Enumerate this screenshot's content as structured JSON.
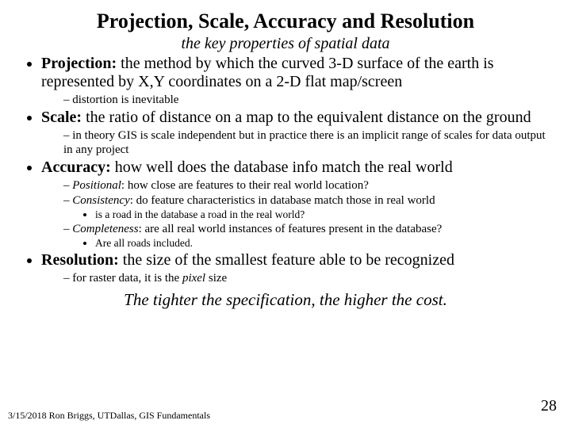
{
  "title": "Projection, Scale, Accuracy and Resolution",
  "subtitle": "the key properties of spatial data",
  "terms": {
    "projection": "Projection:",
    "scale": "Scale:",
    "accuracy": "Accuracy:",
    "resolution": "Resolution:"
  },
  "text": {
    "projection_body": " the method by which the curved 3-D surface of the earth is represented by X,Y coordinates on a 2-D flat map/screen",
    "projection_sub1": "distortion is inevitable",
    "scale_body": " the ratio of distance on a map to the equivalent distance on the ground",
    "scale_sub1": "in theory GIS is scale independent but in practice there is an implicit range  of scales for data output in any project",
    "accuracy_body": " how well does the database info match the real world",
    "acc_pos_label": "Positional",
    "acc_pos_body": ": how close are features to their real world location?",
    "acc_con_label": "Consistency",
    "acc_con_body": ": do feature characteristics in database match those in real world",
    "acc_con_sub": "is a road in the database a road in the real world?",
    "acc_comp_label": "Completeness",
    "acc_comp_body": ": are all real world instances of features present in the database?",
    "acc_comp_sub": "Are all roads included.",
    "resolution_body": " the size of the smallest feature able to be recognized",
    "res_sub_pre": "for raster data, it is the ",
    "res_sub_it": "pixel",
    "res_sub_post": " size"
  },
  "closing": "The tighter the specification, the higher the cost.",
  "footer": "3/15/2018 Ron Briggs, UTDallas, GIS Fundamentals",
  "page": "28"
}
